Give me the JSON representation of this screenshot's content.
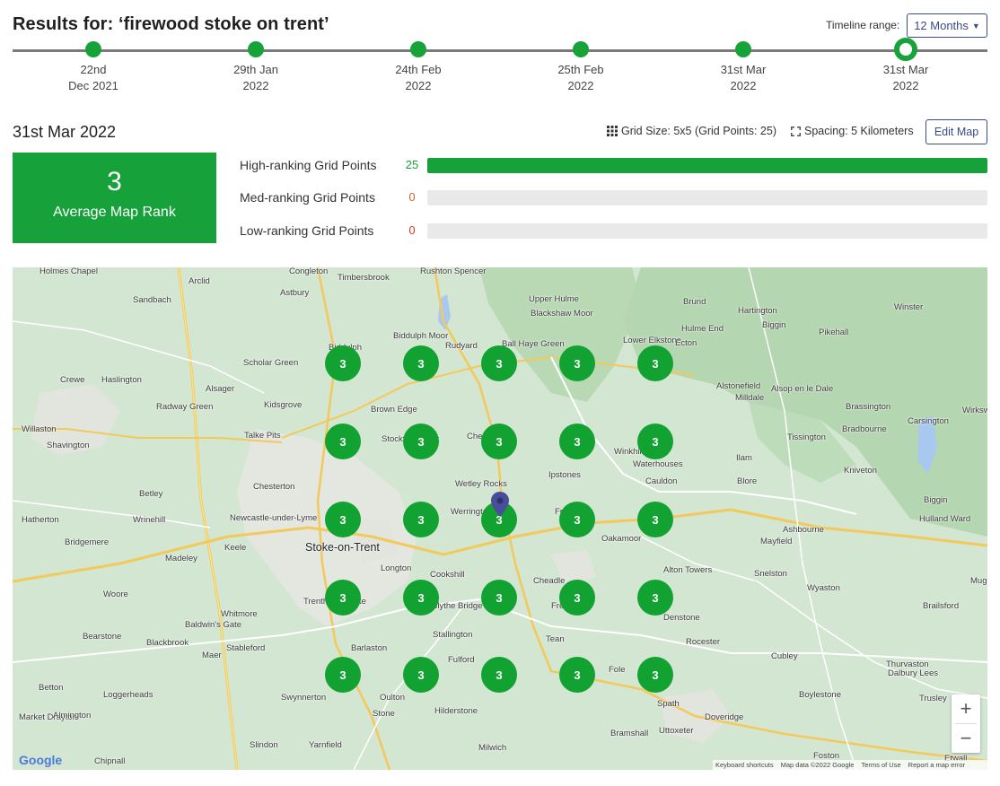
{
  "header": {
    "title": "Results for: ‘firewood stoke on trent’",
    "range_label": "Timeline range:",
    "range_value": "12 Months"
  },
  "timeline": [
    {
      "line1": "22nd",
      "line2": "Dec 2021",
      "active": false
    },
    {
      "line1": "29th Jan",
      "line2": "2022",
      "active": false
    },
    {
      "line1": "24th Feb",
      "line2": "2022",
      "active": false
    },
    {
      "line1": "25th Feb",
      "line2": "2022",
      "active": false
    },
    {
      "line1": "31st Mar",
      "line2": "2022",
      "active": false
    },
    {
      "line1": "31st Mar",
      "line2": "2022",
      "active": true
    }
  ],
  "summary": {
    "date": "31st Mar 2022",
    "grid_size": "Grid Size: 5x5 (Grid Points: 25)",
    "spacing": "Spacing: 5 Kilometers",
    "edit_label": "Edit Map",
    "avg_rank_value": "3",
    "avg_rank_label": "Average Map Rank"
  },
  "rank_bars": [
    {
      "label": "High-ranking Grid Points",
      "count": "25",
      "fraction": 1.0,
      "count_color": "#17a13a"
    },
    {
      "label": "Med-ranking Grid Points",
      "count": "0",
      "fraction": 0.0,
      "count_color": "#d0652a"
    },
    {
      "label": "Low-ranking Grid Points",
      "count": "0",
      "fraction": 0.0,
      "count_color": "#d03a2a"
    }
  ],
  "map": {
    "grid_ranks": [
      [
        "3",
        "3",
        "3",
        "3",
        "3"
      ],
      [
        "3",
        "3",
        "3",
        "3",
        "3"
      ],
      [
        "3",
        "3",
        "3",
        "3",
        "3"
      ],
      [
        "3",
        "3",
        "3",
        "3",
        "3"
      ],
      [
        "3",
        "3",
        "3",
        "3",
        "3"
      ]
    ],
    "places": [
      "Holmes Chapel",
      "Congleton",
      "Rushton Spencer",
      "Timbersbrook",
      "Astbury",
      "Arclid",
      "Sandbach",
      "Upper Hulme",
      "Blackshaw Moor",
      "Brund",
      "Hartington",
      "Winster",
      "Hulme End",
      "Biggin",
      "Pikehall",
      "Crewe",
      "Haslington",
      "Scholar Green",
      "Biddulph",
      "Biddulph Moor",
      "Rudyard",
      "Ball Haye Green",
      "Lower Elkstone",
      "Ecton",
      "Alsager",
      "Radway Green",
      "Kidsgrove",
      "Brown Edge",
      "Alstonefield",
      "Alsop en le Dale",
      "Milldale",
      "Brassington",
      "Carsington",
      "Wirksworth",
      "Willaston",
      "Shavington",
      "Talke Pits",
      "Stockton Brook",
      "Cheddleton",
      "Winkhill",
      "Waterhouses",
      "Tissington",
      "Bradbourne",
      "Chesterton",
      "Ipstones",
      "Ilam",
      "Kniveton",
      "Betley",
      "Wetley Rocks",
      "Cauldon",
      "Blore",
      "Hatherton",
      "Wrinehill",
      "Newcastle-under-Lyme",
      "Werrington",
      "Froghall",
      "Biggin",
      "Hulland Ward",
      "Bridgemere",
      "Keele",
      "Ashbourne",
      "Stoke-on-Trent",
      "Oakamoor",
      "Mayfield",
      "Madeley",
      "Longton",
      "Cookshill",
      "Alton Towers",
      "Snelston",
      "Woore",
      "Cheadle",
      "Wyaston",
      "Muggington",
      "Whitmore",
      "Blythe Bridge",
      "Freehay",
      "Denstone",
      "Brailsford",
      "Baldwin's Gate",
      "Trentham Estate",
      "Stallington",
      "Tean",
      "Rocester",
      "Bearstone",
      "Blackbrook",
      "Stableford",
      "Barlaston",
      "Maer",
      "Fulford",
      "Cubley",
      "Thurvaston",
      "Dalbury Lees",
      "Betton",
      "Loggerheads",
      "Swynnerton",
      "Oulton",
      "Hilderstone",
      "Fole",
      "Boylestone",
      "Trusley",
      "Market Drayton",
      "Almington",
      "Stone",
      "Spath",
      "Doveridge",
      "Bramshall",
      "Uttoxeter",
      "Slindon",
      "Yarnfield",
      "Milwich",
      "Chipnall",
      "Foston",
      "Etwall"
    ],
    "city": "Stoke-on-Trent",
    "attribution": [
      "Keyboard shortcuts",
      "Map data ©2022 Google",
      "Terms of Use",
      "Report a map error"
    ],
    "google": "Google"
  }
}
